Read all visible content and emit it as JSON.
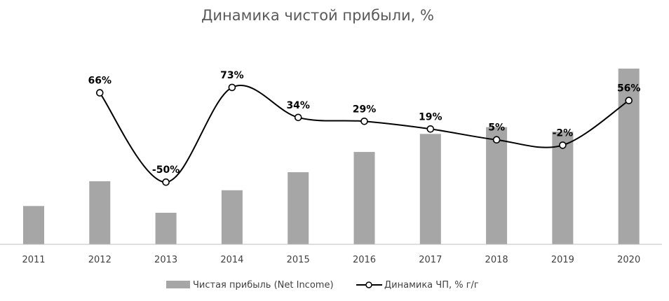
{
  "chart_data": {
    "type": "bar",
    "title": "Динамика чистой прибыли, %",
    "categories": [
      "2011",
      "2012",
      "2013",
      "2014",
      "2015",
      "2016",
      "2017",
      "2018",
      "2019",
      "2020"
    ],
    "series": [
      {
        "name": "Чистая прибыль (Net Income)",
        "type": "bar",
        "color": "#a6a6a6",
        "values": [
          1.7,
          2.8,
          1.4,
          2.4,
          3.2,
          4.1,
          4.9,
          5.2,
          5.0,
          7.8
        ]
      },
      {
        "name": "Динамика ЧП, % г/г",
        "type": "line",
        "smooth": true,
        "color": "#000000",
        "marker": "circle-open",
        "values": [
          null,
          66,
          -50,
          73,
          34,
          29,
          19,
          5,
          -2,
          56
        ],
        "labels": [
          "",
          "66%",
          "-50%",
          "73%",
          "34%",
          "29%",
          "19%",
          "5%",
          "-2%",
          "56%"
        ]
      }
    ],
    "legend_position": "bottom",
    "grid": false
  }
}
